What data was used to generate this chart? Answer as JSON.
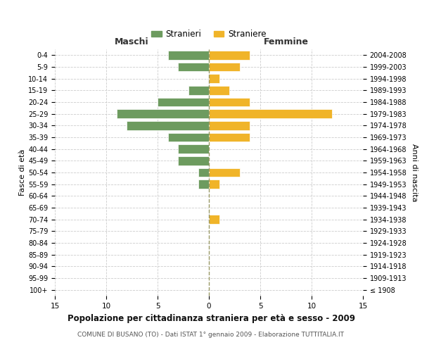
{
  "age_groups": [
    "100+",
    "95-99",
    "90-94",
    "85-89",
    "80-84",
    "75-79",
    "70-74",
    "65-69",
    "60-64",
    "55-59",
    "50-54",
    "45-49",
    "40-44",
    "35-39",
    "30-34",
    "25-29",
    "20-24",
    "15-19",
    "10-14",
    "5-9",
    "0-4"
  ],
  "birth_years": [
    "≤ 1908",
    "1909-1913",
    "1914-1918",
    "1919-1923",
    "1924-1928",
    "1929-1933",
    "1934-1938",
    "1939-1943",
    "1944-1948",
    "1949-1953",
    "1954-1958",
    "1959-1963",
    "1964-1968",
    "1969-1973",
    "1974-1978",
    "1979-1983",
    "1984-1988",
    "1989-1993",
    "1994-1998",
    "1999-2003",
    "2004-2008"
  ],
  "males": [
    0,
    0,
    0,
    0,
    0,
    0,
    0,
    0,
    0,
    1,
    1,
    3,
    3,
    4,
    8,
    9,
    5,
    2,
    0,
    3,
    4
  ],
  "females": [
    0,
    0,
    0,
    0,
    0,
    0,
    1,
    0,
    0,
    1,
    3,
    0,
    0,
    4,
    4,
    12,
    4,
    2,
    1,
    3,
    4
  ],
  "male_color": "#6d9b5f",
  "female_color": "#f0b429",
  "title": "Popolazione per cittadinanza straniera per età e sesso - 2009",
  "subtitle": "COMUNE DI BUSANO (TO) - Dati ISTAT 1° gennaio 2009 - Elaborazione TUTTITALIA.IT",
  "xlabel_left": "Maschi",
  "xlabel_right": "Femmine",
  "ylabel_left": "Fasce di età",
  "ylabel_right": "Anni di nascita",
  "legend_male": "Stranieri",
  "legend_female": "Straniere",
  "xlim": 15,
  "background_color": "#ffffff",
  "grid_color": "#cccccc",
  "center_line_color": "#999966"
}
